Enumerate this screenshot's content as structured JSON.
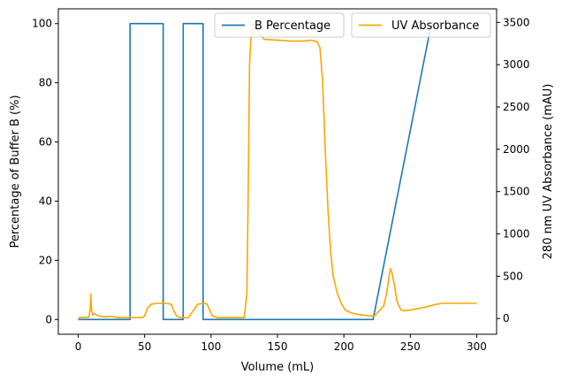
{
  "chart_data": {
    "type": "line",
    "xlabel": "Volume (mL)",
    "ylabel_left": "Percentage of Buffer B (%)",
    "ylabel_right": "280 nm UV Absorbance (mAU)",
    "xlim": [
      -15,
      315
    ],
    "ylim_left": [
      -5,
      105
    ],
    "ylim_right": [
      -186,
      3660
    ],
    "x_ticks": [
      0,
      50,
      100,
      150,
      200,
      250,
      300
    ],
    "y_ticks_left": [
      0,
      20,
      40,
      60,
      80,
      100
    ],
    "y_ticks_right": [
      0,
      500,
      1000,
      1500,
      2000,
      2500,
      3000,
      3500
    ],
    "grid": false,
    "legend_b_placement": "top-center",
    "legend_uv_placement": "top-right",
    "series": [
      {
        "name": "B Percentage",
        "axis": "left",
        "color": "#1f77b4",
        "x": [
          0,
          39,
          39,
          64,
          64,
          79,
          79,
          94,
          94,
          222,
          265,
          267
        ],
        "y": [
          0,
          0,
          100,
          100,
          0,
          0,
          100,
          100,
          0,
          0,
          98,
          100
        ]
      },
      {
        "name": "UV Absorbance",
        "axis": "right",
        "color": "#ffa500",
        "x": [
          0,
          8,
          9,
          9.5,
          10,
          11,
          12,
          15,
          20,
          25,
          30,
          40,
          48,
          50,
          52,
          55,
          60,
          65,
          70,
          72,
          74,
          77,
          80,
          83,
          90,
          95,
          97,
          99,
          101,
          105,
          115,
          125,
          127,
          128,
          129,
          130,
          131,
          133,
          135,
          137,
          140,
          150,
          160,
          170,
          175,
          180,
          182,
          184,
          186,
          188,
          190,
          192,
          195,
          198,
          201,
          205,
          210,
          220,
          223,
          226,
          230,
          232,
          234,
          235,
          236,
          238,
          240,
          243,
          246,
          250,
          260,
          270,
          275,
          285,
          300
        ],
        "y": [
          10,
          15,
          120,
          290,
          100,
          40,
          60,
          30,
          20,
          25,
          10,
          10,
          10,
          30,
          120,
          170,
          180,
          180,
          170,
          90,
          30,
          10,
          10,
          10,
          170,
          180,
          170,
          100,
          30,
          10,
          10,
          10,
          300,
          1500,
          3000,
          3300,
          3400,
          3450,
          3420,
          3350,
          3300,
          3290,
          3280,
          3280,
          3290,
          3270,
          3200,
          2800,
          2000,
          1300,
          800,
          500,
          300,
          180,
          100,
          70,
          50,
          30,
          30,
          80,
          150,
          280,
          500,
          590,
          550,
          400,
          200,
          100,
          90,
          100,
          130,
          170,
          180,
          180,
          180
        ]
      }
    ]
  }
}
